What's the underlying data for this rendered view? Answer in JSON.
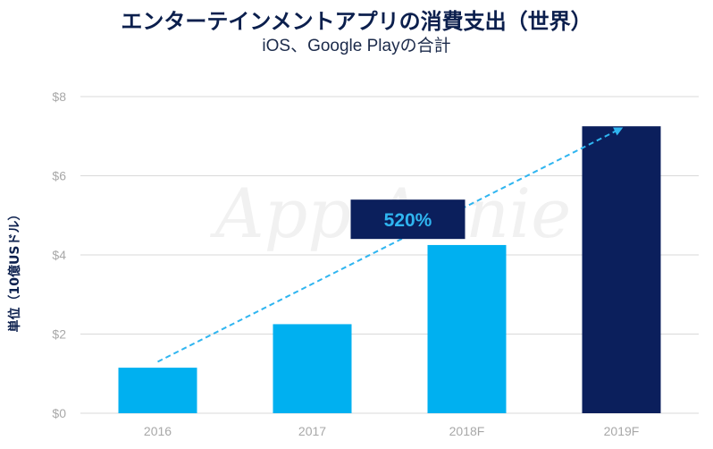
{
  "chart_data": {
    "type": "bar",
    "title": "エンターテインメントアプリの消費支出（世界）",
    "subtitle": "iOS、Google Playの合計",
    "ylabel": "単位（10億USドル）",
    "categories": [
      "2016",
      "2017",
      "2018F",
      "2019F"
    ],
    "values": [
      1.15,
      2.25,
      4.25,
      7.25
    ],
    "ylim": [
      0,
      8
    ],
    "yticks": [
      0,
      2,
      4,
      6,
      8
    ],
    "ytick_labels": [
      "$0",
      "$2",
      "$4",
      "$6",
      "$8"
    ],
    "bar_colors": [
      "#00b0f0",
      "#00b0f0",
      "#00b0f0",
      "#0b1f5c"
    ],
    "grid": true,
    "annotation": {
      "text": "520%",
      "style": "dashed-arrow",
      "arrow_from": {
        "category": "2016",
        "value": 1.3
      },
      "arrow_to": {
        "category": "2019F",
        "value": 7.2
      },
      "label_value": 4.9,
      "label_category": "2018F",
      "box_color": "#0b1f5c",
      "arrow_color": "#2fb5f0"
    },
    "watermark": "App Annie"
  }
}
